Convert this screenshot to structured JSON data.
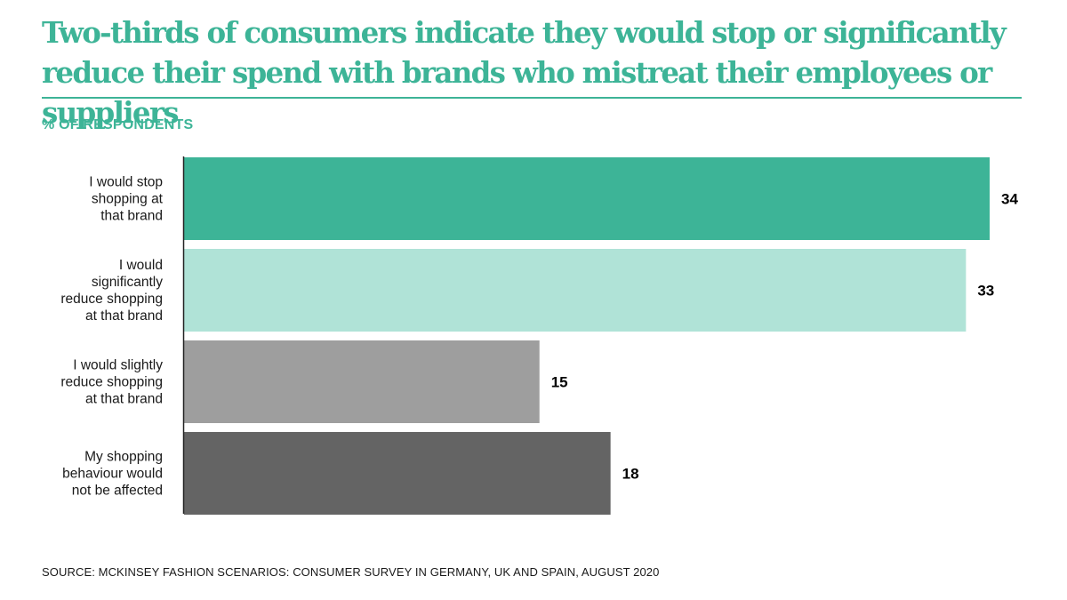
{
  "header": {
    "title": "Two-thirds of consumers indicate they would stop or significantly reduce their spend with brands who mistreat their employees or suppliers",
    "subtitle": "% OF RESPONDENTS"
  },
  "footer": {
    "source": "SOURCE: MCKINSEY FASHION SCENARIOS: CONSUMER SURVEY IN GERMANY, UK AND SPAIN, AUGUST 2020"
  },
  "colors": {
    "accent": "#3db497",
    "axis": "#222222"
  },
  "chart_data": {
    "type": "bar",
    "orientation": "horizontal",
    "title": "Two-thirds of consumers indicate they would stop or significantly reduce their spend with brands who mistreat their employees or suppliers",
    "ylabel": "% OF RESPONDENTS",
    "categories": [
      "I would stop shopping at that brand",
      "I would significantly reduce shopping at that brand",
      "I would slightly reduce shopping at that brand",
      "My shopping behaviour would not be affected"
    ],
    "category_lines": [
      [
        "I would stop",
        "shopping at",
        "that brand"
      ],
      [
        "I would",
        "significantly",
        "reduce shopping",
        "at that brand"
      ],
      [
        "I would slightly",
        "reduce shopping",
        "at that brand"
      ],
      [
        "My shopping",
        "behaviour would",
        "not be affected"
      ]
    ],
    "values": [
      34,
      33,
      15,
      18
    ],
    "value_labels": [
      "34",
      "33",
      "15",
      "18"
    ],
    "bar_colors": [
      "#3db497",
      "#b0e3d7",
      "#9e9e9e",
      "#646464"
    ],
    "xlim": [
      0,
      34
    ],
    "grid": false,
    "legend": "none"
  }
}
